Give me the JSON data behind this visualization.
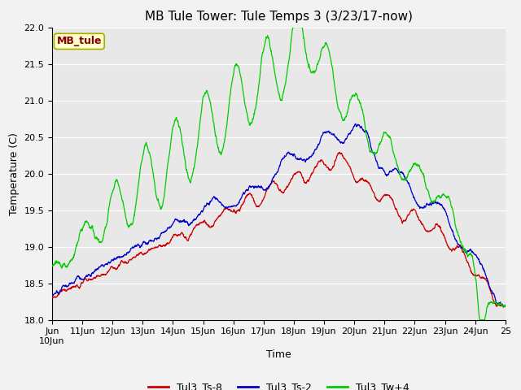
{
  "title": "MB Tule Tower: Tule Temps 3 (3/23/17-now)",
  "xlabel": "Time",
  "ylabel": "Temperature (C)",
  "ylim": [
    18.0,
    22.0
  ],
  "xlim": [
    0,
    15
  ],
  "yticks": [
    18.0,
    18.5,
    19.0,
    19.5,
    20.0,
    20.5,
    21.0,
    21.5,
    22.0
  ],
  "line_colors": [
    "#cc0000",
    "#0000cc",
    "#00cc00"
  ],
  "legend_labels": [
    "Tul3_Ts-8",
    "Tul3_Ts-2",
    "Tul3_Tw+4"
  ],
  "legend_colors": [
    "#cc0000",
    "#0000cc",
    "#00cc00"
  ],
  "watermark_text": "MB_tule",
  "watermark_bg": "#ffffcc",
  "watermark_fg": "#880000",
  "plot_bg": "#e8e8e8",
  "grid_color": "#ffffff",
  "title_fontsize": 11,
  "axis_fontsize": 9,
  "tick_fontsize": 8,
  "legend_fontsize": 9
}
